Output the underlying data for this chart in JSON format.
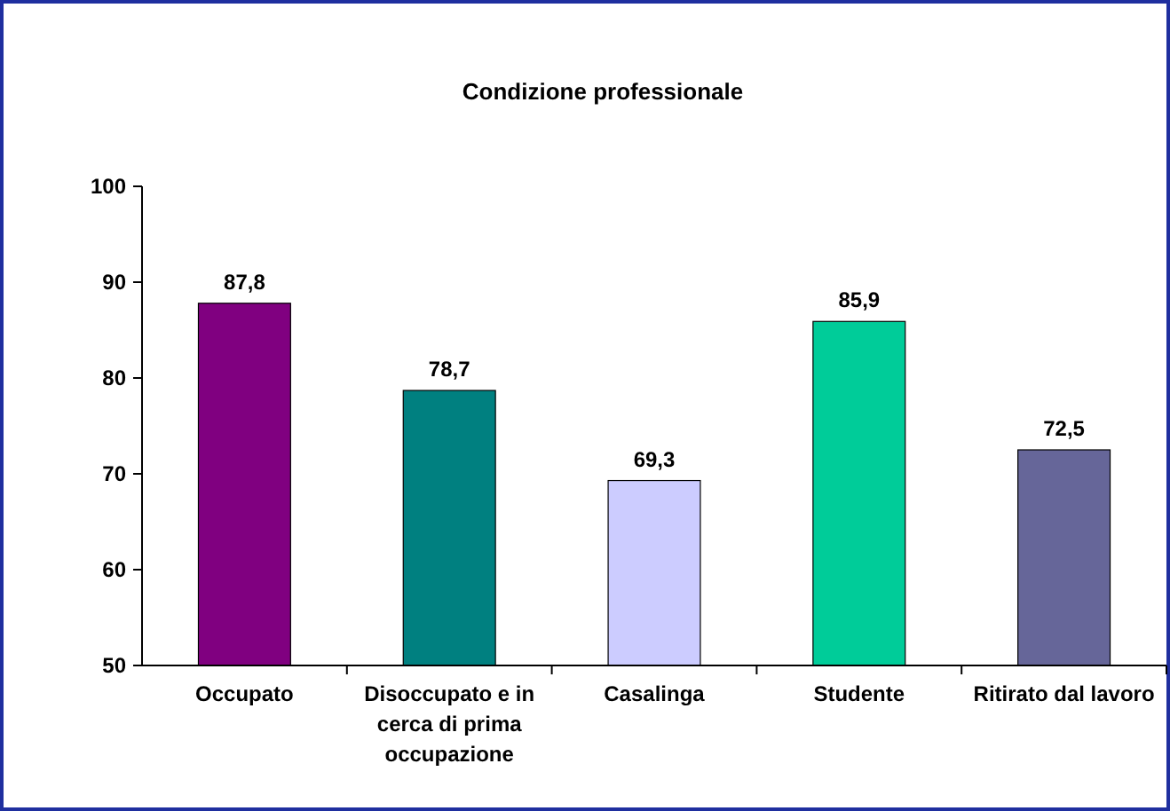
{
  "chart_data": {
    "type": "bar",
    "title": "Condizione professionale",
    "categories": [
      "Occupato",
      "Disoccupato e in cerca di prima occupazione",
      "Casalinga",
      "Studente",
      "Ritirato dal lavoro"
    ],
    "values": [
      87.8,
      78.7,
      69.3,
      85.9,
      72.5
    ],
    "colors": [
      "#800080",
      "#008080",
      "#ccccff",
      "#00cc99",
      "#666699"
    ],
    "value_labels": [
      "87,8",
      "78,7",
      "69,3",
      "85,9",
      "72,5"
    ],
    "ylim": [
      50,
      100
    ],
    "yticks": [
      50,
      60,
      70,
      80,
      90,
      100
    ]
  }
}
